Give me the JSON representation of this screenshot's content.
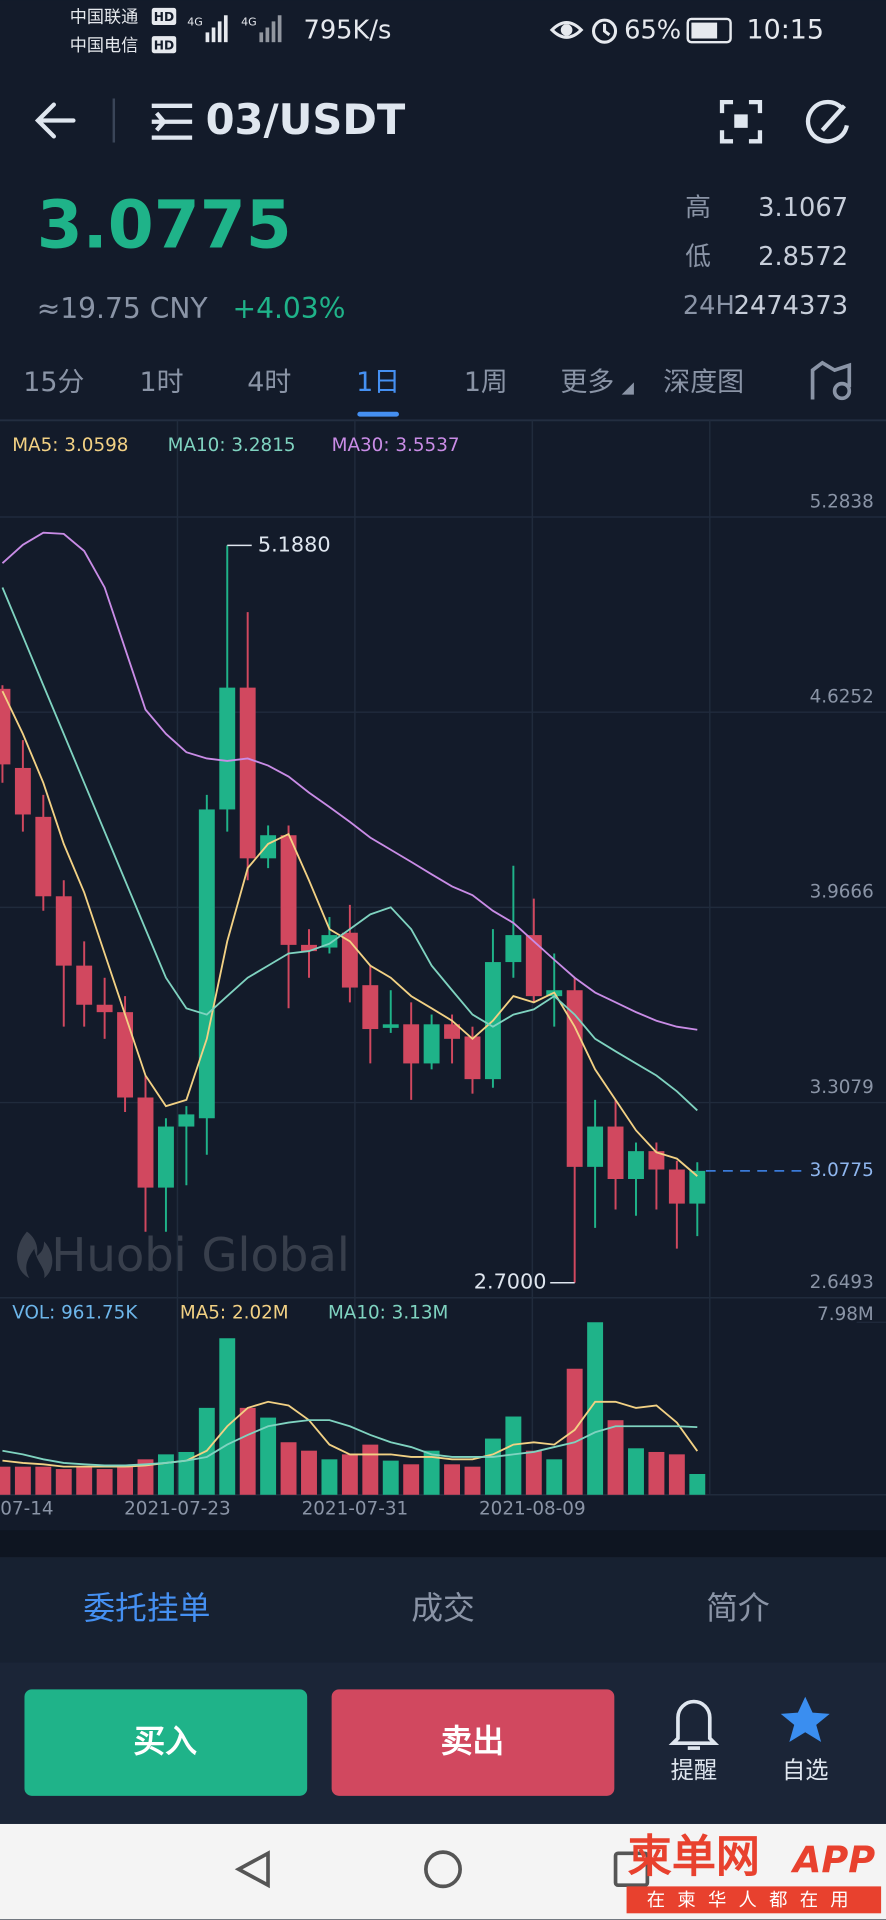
{
  "status_bar": {
    "carrier_1": "中国联通",
    "carrier_2": "中国电信",
    "badge": "HD",
    "network": "4G",
    "speed": "795K/s",
    "battery": "65%",
    "time": "10:15"
  },
  "header": {
    "pair": "03/USDT"
  },
  "ticker": {
    "price": "3.0775",
    "cny": "≈19.75 CNY",
    "change": "+4.03%",
    "high_label": "高",
    "high": "3.1067",
    "low_label": "低",
    "low": "2.8572",
    "volume_label": "24H",
    "volume": "2474373"
  },
  "tabs": {
    "items": [
      "15分",
      "1时",
      "4时",
      "1日",
      "1周",
      "更多",
      "深度图"
    ],
    "active": 3
  },
  "chart_data": {
    "type": "candlestick",
    "open": [
      4.704,
      4.437,
      4.272,
      4.004,
      3.77,
      3.638,
      3.613,
      3.325,
      3.021,
      3.227,
      3.255,
      4.297,
      4.708,
      4.132,
      4.21,
      3.84,
      3.831,
      3.881,
      3.704,
      3.56,
      3.572,
      3.44,
      3.572,
      3.531,
      3.387,
      3.782,
      3.873,
      3.667,
      3.687,
      3.091,
      3.227,
      3.05,
      3.144,
      3.082,
      2.967
    ],
    "high": [
      4.716,
      4.531,
      4.346,
      4.058,
      3.852,
      3.729,
      3.667,
      3.399,
      3.255,
      3.296,
      4.346,
      5.188,
      4.963,
      4.243,
      4.243,
      3.893,
      3.934,
      3.975,
      3.77,
      3.687,
      3.646,
      3.605,
      3.605,
      3.564,
      3.893,
      4.107,
      3.996,
      3.811,
      3.729,
      3.317,
      3.317,
      3.173,
      3.173,
      3.111,
      3.1067
    ],
    "low": [
      4.387,
      4.222,
      3.955,
      3.564,
      3.564,
      3.523,
      3.276,
      2.872,
      2.872,
      3.029,
      3.132,
      4.222,
      4.058,
      4.099,
      3.626,
      3.729,
      3.811,
      3.646,
      3.44,
      3.543,
      3.317,
      3.42,
      3.44,
      3.338,
      3.358,
      3.729,
      3.646,
      3.564,
      2.7,
      2.885,
      2.947,
      2.926,
      2.947,
      2.815,
      2.8572
    ],
    "close": [
      4.449,
      4.28,
      4.004,
      3.77,
      3.638,
      3.613,
      3.325,
      3.021,
      3.227,
      3.268,
      4.297,
      4.708,
      4.132,
      4.21,
      3.84,
      3.819,
      3.873,
      3.696,
      3.556,
      3.572,
      3.44,
      3.572,
      3.523,
      3.387,
      3.782,
      3.873,
      3.667,
      3.687,
      3.091,
      3.227,
      3.05,
      3.144,
      3.082,
      2.967,
      3.0775
    ],
    "up_color": "#1fb389",
    "down_color": "#d1485f",
    "ylim": [
      2.6493,
      5.61
    ],
    "yticks": [
      5.2838,
      4.6252,
      3.9666,
      3.3079,
      2.6493
    ],
    "grid": true,
    "ma": [
      {
        "name": "MA5: 3.0598",
        "color": "#f2d184",
        "values": [
          4.696,
          4.552,
          4.387,
          4.181,
          4.017,
          3.811,
          3.605,
          3.399,
          3.296,
          3.317,
          3.523,
          3.852,
          4.099,
          4.181,
          4.214,
          4.058,
          3.893,
          3.852,
          3.77,
          3.729,
          3.667,
          3.626,
          3.584,
          3.523,
          3.584,
          3.667,
          3.646,
          3.679,
          3.564,
          3.42,
          3.317,
          3.214,
          3.14,
          3.119,
          3.0598
        ]
      },
      {
        "name": "MA10: 3.2815",
        "color": "#7fd3c0",
        "values": [
          5.046,
          4.881,
          4.716,
          4.552,
          4.387,
          4.222,
          4.058,
          3.893,
          3.729,
          3.626,
          3.605,
          3.667,
          3.729,
          3.77,
          3.811,
          3.819,
          3.844,
          3.893,
          3.943,
          3.967,
          3.893,
          3.77,
          3.687,
          3.605,
          3.564,
          3.605,
          3.622,
          3.667,
          3.605,
          3.523,
          3.481,
          3.44,
          3.399,
          3.346,
          3.2815
        ]
      },
      {
        "name": "MA30: 3.5537",
        "color": "#c98ce6",
        "values": [
          5.128,
          5.19,
          5.231,
          5.227,
          5.169,
          5.046,
          4.84,
          4.634,
          4.552,
          4.49,
          4.469,
          4.461,
          4.469,
          4.445,
          4.408,
          4.354,
          4.305,
          4.255,
          4.202,
          4.161,
          4.12,
          4.078,
          4.037,
          4.008,
          3.955,
          3.914,
          3.852,
          3.79,
          3.729,
          3.679,
          3.646,
          3.613,
          3.584,
          3.564,
          3.5537
        ]
      }
    ],
    "max_label": {
      "value": 5.188,
      "label": "5.1880"
    },
    "min_label": {
      "value": 2.7,
      "label": "2.7000"
    },
    "watermark": "Huobi Global",
    "volume": {
      "name": "VOL: 961.75K",
      "color": "#6db6ea",
      "values": [
        1.3,
        1.3,
        1.3,
        1.19,
        1.3,
        1.19,
        1.3,
        1.64,
        1.87,
        1.98,
        4.02,
        7.24,
        4.02,
        3.57,
        2.43,
        2.04,
        1.64,
        1.87,
        2.32,
        1.58,
        1.41,
        2.04,
        1.41,
        1.3,
        2.6,
        3.62,
        2.04,
        1.64,
        5.83,
        7.98,
        3.45,
        2.15,
        1.98,
        1.87,
        0.96175
      ],
      "ylim": [
        0,
        8.83
      ],
      "yticks": [
        {
          "value": 7.98,
          "label": "7.98M"
        }
      ],
      "ma": [
        {
          "name": "MA5: 2.02M",
          "color": "#f2d184",
          "values": [
            1.58,
            1.47,
            1.41,
            1.3,
            1.3,
            1.3,
            1.3,
            1.36,
            1.47,
            1.58,
            2.04,
            3.17,
            4.02,
            4.3,
            4.13,
            3.45,
            2.32,
            1.87,
            1.87,
            1.87,
            1.75,
            1.75,
            1.64,
            1.64,
            1.87,
            2.32,
            2.43,
            2.32,
            3.0,
            4.3,
            4.3,
            4.02,
            4.13,
            3.34,
            2.02
          ]
        },
        {
          "name": "MA10: 3.13M",
          "color": "#7fd3c0",
          "values": [
            2.04,
            1.87,
            1.64,
            1.47,
            1.41,
            1.36,
            1.36,
            1.41,
            1.47,
            1.58,
            1.75,
            2.32,
            2.77,
            3.17,
            3.34,
            3.45,
            3.45,
            3.17,
            2.77,
            2.43,
            2.21,
            1.87,
            1.75,
            1.75,
            1.75,
            1.87,
            1.98,
            2.21,
            2.43,
            2.89,
            3.17,
            3.17,
            3.17,
            3.17,
            3.13
          ]
        }
      ]
    },
    "x_labels": [
      "07-14",
      "2021-07-23",
      "2021-07-31",
      "2021-08-09"
    ]
  },
  "order_tabs": {
    "items": [
      "委托挂单",
      "成交",
      "简介"
    ],
    "active": 0
  },
  "actions": {
    "buy": "买入",
    "sell": "卖出",
    "alert": "提醒",
    "favorite": "自选"
  },
  "site_mark": {
    "brand": "柬单网",
    "app": "APP",
    "slogan": "在柬华人都在用"
  }
}
